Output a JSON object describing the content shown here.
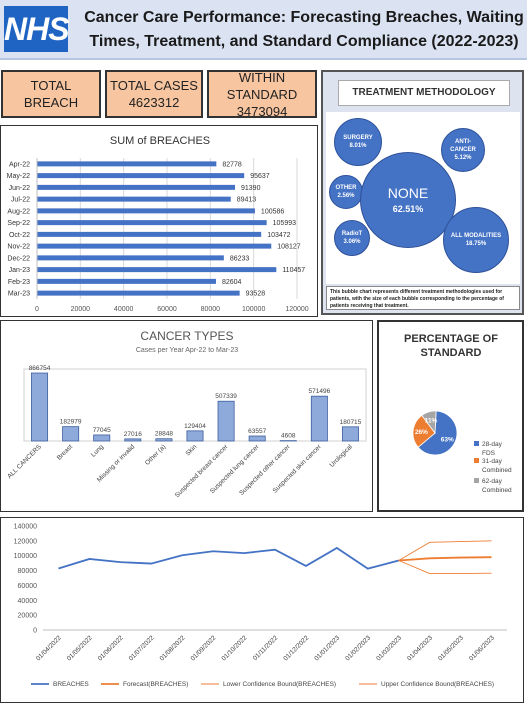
{
  "header": {
    "logo": "NHS",
    "title": "Cancer Care Performance: Forecasting Breaches, Waiting Times, Treatment, and Standard Compliance (2022-2023)"
  },
  "kpis": [
    {
      "label": "TOTAL BREACH",
      "value": ""
    },
    {
      "label": "TOTAL CASES",
      "value": "4623312"
    },
    {
      "label": "WITHIN STANDARD",
      "value": "3473094"
    }
  ],
  "treatment": {
    "title": "TREATMENT METHODOLOGY",
    "note": "This bubble chart represents different treatment methodologies used for patients, with the size of each bubble corresponding to the percentage of patients receiving that treatment."
  },
  "colors": {
    "bar": "#4472c4",
    "breaches_line": "#4472c4",
    "forecast": "#ed7d31",
    "pie_28": "#4472c4",
    "pie_31": "#ed7d31",
    "pie_62": "#a5a5a5",
    "kpi_fill": "#f7c5a0"
  },
  "chart_data": [
    {
      "id": "breaches",
      "type": "bar",
      "orientation": "horizontal",
      "title": "SUM of BREACHES",
      "categories": [
        "Apr-22",
        "May-22",
        "Jun-22",
        "Jul-22",
        "Aug-22",
        "Sep-22",
        "Oct-22",
        "Nov-22",
        "Dec-22",
        "Jan-23",
        "Feb-23",
        "Mar-23"
      ],
      "values": [
        82778,
        95637,
        91390,
        89413,
        100586,
        105993,
        103472,
        108127,
        86233,
        110457,
        82604,
        93528
      ],
      "xlim": [
        0,
        120000
      ],
      "xticks": [
        "0",
        "20000",
        "40000",
        "60000",
        "80000",
        "100000",
        "120000"
      ],
      "grid": true
    },
    {
      "id": "treatment",
      "type": "scatter",
      "title": "TREATMENT METHODOLOGY",
      "categories": [
        "SURGERY",
        "ANTI-CANCER",
        "OTHER",
        "NONE",
        "RadioT",
        "ALL MODALITIES"
      ],
      "values": [
        8.01,
        5.12,
        2.56,
        62.51,
        3.06,
        18.75
      ],
      "labels": [
        "8.01%",
        "5.12%",
        "2.56%",
        "62.51%",
        "3.06%",
        "18.75%"
      ]
    },
    {
      "id": "cancer_types",
      "type": "bar",
      "title": "CANCER TYPES",
      "subtitle": "Cases per Year Apr-22 to Mar-23",
      "categories": [
        "ALL CANCERS",
        "Breast",
        "Lung",
        "Missing or invalid",
        "Other (a)",
        "Skin",
        "Suspected breast cancer",
        "Suspected lung cancer",
        "Suspected other cancer",
        "Suspected skin cancer",
        "Urological"
      ],
      "values": [
        866754,
        182979,
        77045,
        27016,
        28848,
        129404,
        507339,
        63557,
        4608,
        571496,
        180715
      ],
      "labels": [
        "866754",
        "182979",
        "77045",
        "27016",
        "28848",
        "129404",
        "507339",
        "63557",
        "4608",
        "571496",
        "180715"
      ]
    },
    {
      "id": "standard",
      "type": "pie",
      "title": "PERCENTAGE OF STANDARD",
      "categories": [
        "28-day FDS",
        "31-day Combined",
        "62-day Combined"
      ],
      "values": [
        63,
        26,
        11
      ],
      "labels": [
        "63%",
        "26%",
        "11%"
      ],
      "legend": "right"
    },
    {
      "id": "forecast",
      "type": "line",
      "x": [
        "01/04/2022",
        "01/05/2022",
        "01/06/2022",
        "01/07/2022",
        "01/08/2022",
        "01/09/2022",
        "01/10/2022",
        "01/11/2022",
        "01/12/2022",
        "01/01/2023",
        "01/02/2023",
        "01/03/2023",
        "01/04/2023",
        "01/05/2023",
        "01/06/2023"
      ],
      "ylim": [
        0,
        140000
      ],
      "yticks": [
        "0",
        "20000",
        "40000",
        "60000",
        "80000",
        "100000",
        "120000",
        "140000"
      ],
      "series": [
        {
          "name": "BREACHES",
          "values": [
            82778,
            95637,
            91390,
            89413,
            100586,
            105993,
            103472,
            108127,
            86233,
            110457,
            82604,
            93528,
            null,
            null,
            null
          ]
        },
        {
          "name": "Forecast(BREACHES)",
          "values": [
            null,
            null,
            null,
            null,
            null,
            null,
            null,
            null,
            null,
            null,
            null,
            93528,
            96500,
            97500,
            98000
          ]
        },
        {
          "name": "Lower Confidence Bound(BREACHES)",
          "values": [
            null,
            null,
            null,
            null,
            null,
            null,
            null,
            null,
            null,
            null,
            null,
            93528,
            76000,
            76000,
            76500
          ]
        },
        {
          "name": "Upper Confidence Bound(BREACHES)",
          "values": [
            null,
            null,
            null,
            null,
            null,
            null,
            null,
            null,
            null,
            null,
            null,
            93528,
            118000,
            119000,
            120000
          ]
        }
      ],
      "legend": "bottom"
    }
  ]
}
